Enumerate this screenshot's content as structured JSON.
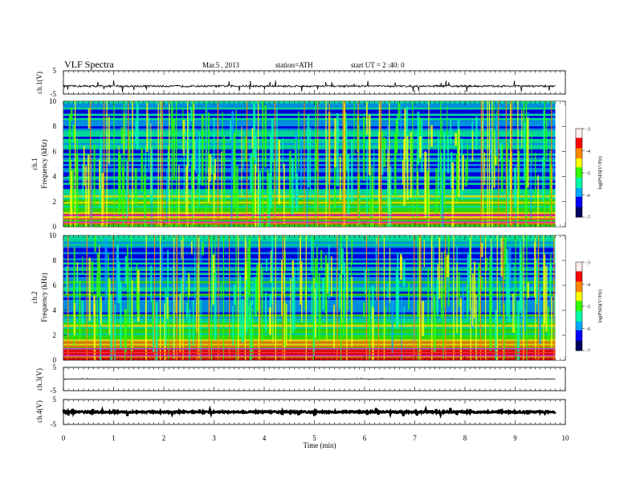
{
  "header": {
    "title": "VLF  Spectra",
    "date": "Mar.5  , 2013",
    "station": "station=ATH",
    "start": "start  UT  =   2 :40: 0"
  },
  "chart_data": {
    "type": "heatmap",
    "xlabel": "Time  (min)",
    "xlim": [
      0,
      10
    ],
    "x_ticks": [
      "0",
      "1",
      "2",
      "3",
      "4",
      "5",
      "6",
      "7",
      "8",
      "9",
      "10"
    ],
    "data_end_min": 9.8,
    "panels": [
      {
        "kind": "waveform",
        "label": "ch.1(V)",
        "ylim": [
          -5,
          5
        ],
        "y_ticks": [
          "5",
          "-5"
        ],
        "baseline": -1.6,
        "noise_amplitude": 0.4,
        "spike_amplitude": 2.5
      },
      {
        "kind": "spectrogram",
        "label": "ch.1",
        "ylabel": "Frequency  (kHz)",
        "ylim": [
          0,
          10
        ],
        "y_ticks": [
          "0",
          "2",
          "4",
          "6",
          "8",
          "10"
        ]
      },
      {
        "kind": "spectrogram",
        "label": "ch.2",
        "ylabel": "Frequency  (kHz)",
        "ylim": [
          0,
          10
        ],
        "y_ticks": [
          "0",
          "2",
          "4",
          "6",
          "8",
          "10"
        ]
      },
      {
        "kind": "waveform",
        "label": "ch.3(V)",
        "ylim": [
          -5,
          5
        ],
        "y_ticks": [
          "5",
          "-5"
        ],
        "baseline": 0,
        "noise_amplitude": 0.05,
        "spike_amplitude": 0.4
      },
      {
        "kind": "waveform",
        "label": "ch.4(V)",
        "ylim": [
          -5,
          5
        ],
        "y_ticks": [
          "5",
          "-5"
        ],
        "baseline": 0,
        "noise_amplitude": 0.3,
        "spike_amplitude": 1.5,
        "thick": true
      }
    ],
    "colorbar": {
      "label": "log(PSD)(V²/Hz)",
      "range": [
        -7,
        -3
      ],
      "ticks": [
        "-3",
        "-4",
        "-5",
        "-6",
        "-7"
      ],
      "colors": [
        "#000060",
        "#0000ff",
        "#00aaff",
        "#00ffaa",
        "#33ff00",
        "#ffff00",
        "#ff8800",
        "#ff0000",
        "#ffeeee"
      ]
    }
  }
}
